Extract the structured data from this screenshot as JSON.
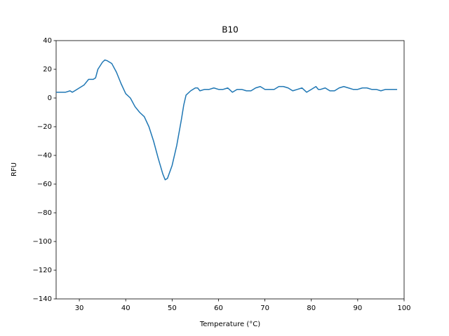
{
  "chart_data": {
    "type": "line",
    "title": "B10",
    "xlabel": "Temperature (°C)",
    "ylabel": "RFU",
    "x": [
      25,
      26,
      27,
      28,
      28.5,
      29,
      30,
      31,
      32,
      33,
      33.5,
      34,
      35,
      35.5,
      36,
      37,
      38,
      39,
      40,
      41,
      42,
      43,
      44,
      45,
      46,
      47,
      48,
      48.5,
      49,
      50,
      51,
      52,
      52.5,
      53,
      54,
      55,
      55.5,
      56,
      57,
      58,
      59,
      60,
      61,
      62,
      63,
      64,
      65,
      66,
      67,
      68,
      69,
      70,
      71,
      72,
      73,
      74,
      75,
      76,
      77,
      78,
      79,
      80,
      81,
      81.5,
      82,
      83,
      84,
      85,
      86,
      87,
      88,
      89,
      90,
      91,
      92,
      93,
      94,
      95,
      96,
      97,
      98,
      98.5
    ],
    "series": [
      {
        "name": "B10",
        "color": "#1f77b4",
        "values": [
          4,
          4,
          4,
          5,
          4,
          5,
          7,
          9,
          13,
          13,
          14,
          20,
          25,
          26.5,
          26,
          24,
          18,
          10,
          3,
          0,
          -6,
          -10,
          -13,
          -20,
          -30,
          -42,
          -53,
          -57,
          -56,
          -47,
          -33,
          -15,
          -5,
          2,
          5,
          7,
          7,
          5,
          6,
          6,
          7,
          6,
          6,
          7,
          4,
          6,
          6,
          5,
          5,
          7,
          8,
          6,
          6,
          6,
          8,
          8,
          7,
          5,
          6,
          7,
          4,
          6,
          8,
          6,
          6,
          7,
          5,
          5,
          7,
          8,
          7,
          6,
          6,
          7,
          7,
          6,
          6,
          5,
          6,
          6,
          6,
          6
        ]
      }
    ],
    "xlim": [
      25,
      100
    ],
    "ylim": [
      -140,
      40
    ],
    "xticks": [
      30,
      40,
      50,
      60,
      70,
      80,
      90,
      100
    ],
    "yticks": [
      {
        "value": -140,
        "label": "−140"
      },
      {
        "value": -120,
        "label": "−120"
      },
      {
        "value": -100,
        "label": "−100"
      },
      {
        "value": -80,
        "label": "−80"
      },
      {
        "value": -60,
        "label": "−60"
      },
      {
        "value": -40,
        "label": "−40"
      },
      {
        "value": -20,
        "label": "−20"
      },
      0,
      20,
      40
    ],
    "grid": false
  }
}
